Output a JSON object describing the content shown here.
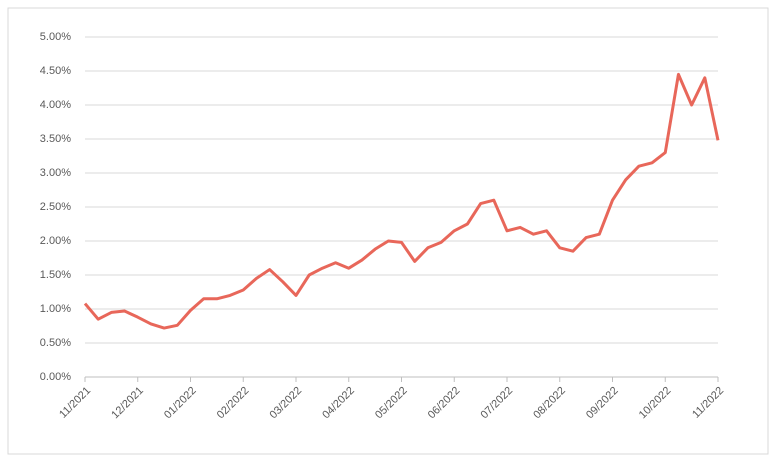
{
  "chart_data": {
    "type": "line",
    "categories": [
      "11/2021",
      null,
      null,
      null,
      "12/2021",
      null,
      null,
      null,
      "01/2022",
      null,
      null,
      null,
      "02/2022",
      null,
      null,
      null,
      "03/2022",
      null,
      null,
      null,
      "04/2022",
      null,
      null,
      null,
      "05/2022",
      null,
      null,
      null,
      "06/2022",
      null,
      null,
      null,
      "07/2022",
      null,
      null,
      null,
      "08/2022",
      null,
      null,
      null,
      "09/2022",
      null,
      null,
      null,
      "10/2022",
      null,
      null,
      null,
      "11/2022"
    ],
    "series": [
      {
        "color": "#e8675a",
        "values": [
          1.08,
          0.85,
          0.95,
          0.97,
          0.88,
          0.78,
          0.72,
          0.76,
          0.98,
          1.15,
          1.15,
          1.2,
          1.28,
          1.45,
          1.58,
          1.4,
          1.2,
          1.5,
          1.6,
          1.68,
          1.6,
          1.72,
          1.88,
          2.0,
          1.98,
          1.7,
          1.9,
          1.98,
          2.15,
          2.25,
          2.55,
          2.6,
          2.15,
          2.2,
          2.1,
          2.15,
          1.9,
          1.85,
          2.05,
          2.1,
          2.6,
          2.9,
          3.1,
          3.15,
          3.3,
          4.45,
          4.0,
          4.4,
          3.48
        ]
      }
    ],
    "ylim": [
      0,
      5
    ],
    "yticks": [
      {
        "value": 0,
        "label": "0.00%"
      },
      {
        "value": 0.5,
        "label": "0.50%"
      },
      {
        "value": 1,
        "label": "1.00%"
      },
      {
        "value": 1.5,
        "label": "1.50%"
      },
      {
        "value": 2,
        "label": "2.00%"
      },
      {
        "value": 2.5,
        "label": "2.50%"
      },
      {
        "value": 3,
        "label": "3.00%"
      },
      {
        "value": 3.5,
        "label": "3.50%"
      },
      {
        "value": 4,
        "label": "4.00%"
      },
      {
        "value": 4.5,
        "label": "4.50%"
      },
      {
        "value": 5,
        "label": "5.00%"
      }
    ],
    "grid": true
  }
}
